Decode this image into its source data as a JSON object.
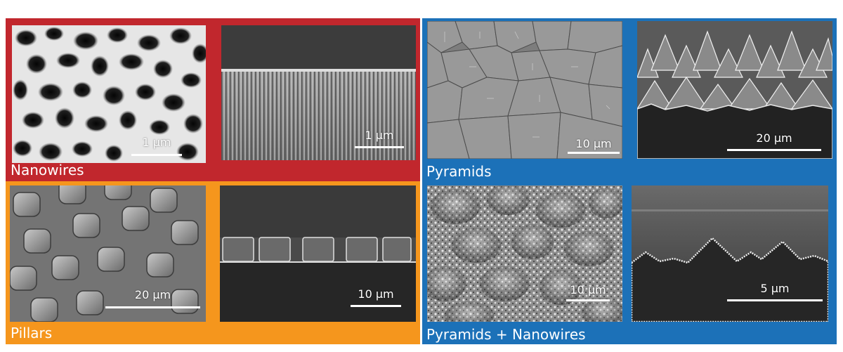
{
  "colors": {
    "nanowires_frame": "#c1272d",
    "pyramids_frame": "#1c71b8",
    "pillars_frame": "#f5961d",
    "pyramids_nanowires_frame": "#1c71b8",
    "scale_bar": "#ffffff"
  },
  "panels": {
    "nanowires": {
      "label": "Nanowires",
      "top_view_scale": "1 μm",
      "cross_section_scale": "1 μm"
    },
    "pyramids": {
      "label": "Pyramids",
      "top_view_scale": "10 μm",
      "cross_section_scale": "20 μm"
    },
    "pillars": {
      "label": "Pillars",
      "top_view_scale": "20 μm",
      "cross_section_scale": "10 μm"
    },
    "pyramids_nanowires": {
      "label": "Pyramids + Nanowires",
      "top_view_scale": "10 μm",
      "cross_section_scale": "5 μm"
    }
  }
}
